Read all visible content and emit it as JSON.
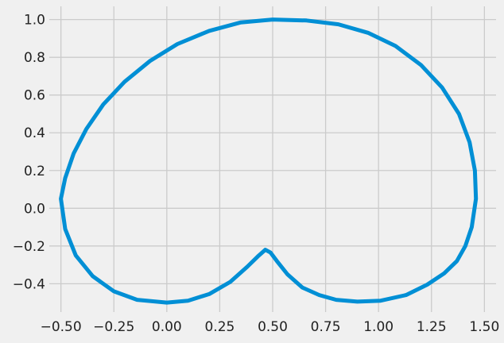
{
  "chart_data": {
    "type": "line",
    "title": "",
    "xlabel": "",
    "ylabel": "",
    "xlim": [
      -0.555,
      1.555
    ],
    "ylim": [
      -0.55,
      1.07
    ],
    "grid": true,
    "background_color": "#f0f0f0",
    "grid_color": "#cbcbcb",
    "x_ticks": [
      "−0.50",
      "−0.25",
      "0.00",
      "0.25",
      "0.50",
      "0.75",
      "1.00",
      "1.25",
      "1.50"
    ],
    "x_tick_values": [
      -0.5,
      -0.25,
      0.0,
      0.25,
      0.5,
      0.75,
      1.0,
      1.25,
      1.5
    ],
    "y_ticks": [
      "−0.4",
      "−0.2",
      "0.0",
      "0.2",
      "0.4",
      "0.6",
      "0.8",
      "1.0"
    ],
    "y_tick_values": [
      -0.4,
      -0.2,
      0.0,
      0.2,
      0.4,
      0.6,
      0.8,
      1.0
    ],
    "series": [
      {
        "color": "#008fd5",
        "x": [
          -0.5,
          -0.48,
          -0.43,
          -0.35,
          -0.25,
          -0.14,
          0.0,
          0.1,
          0.2,
          0.3,
          0.38,
          0.43,
          0.465,
          0.49,
          0.52,
          0.57,
          0.64,
          0.72,
          0.8,
          0.9,
          1.01,
          1.13,
          1.23,
          1.31,
          1.37,
          1.41,
          1.44,
          1.46,
          1.455,
          1.43,
          1.38,
          1.3,
          1.2,
          1.08,
          0.95,
          0.81,
          0.66,
          0.5,
          0.35,
          0.2,
          0.05,
          -0.08,
          -0.2,
          -0.3,
          -0.38,
          -0.44,
          -0.48,
          -0.5
        ],
        "y": [
          0.05,
          -0.11,
          -0.25,
          -0.36,
          -0.44,
          -0.485,
          -0.5,
          -0.49,
          -0.455,
          -0.39,
          -0.31,
          -0.255,
          -0.22,
          -0.235,
          -0.28,
          -0.35,
          -0.42,
          -0.46,
          -0.485,
          -0.495,
          -0.49,
          -0.46,
          -0.405,
          -0.345,
          -0.28,
          -0.2,
          -0.1,
          0.05,
          0.2,
          0.35,
          0.5,
          0.64,
          0.76,
          0.86,
          0.93,
          0.975,
          0.995,
          1.0,
          0.985,
          0.94,
          0.87,
          0.78,
          0.67,
          0.55,
          0.42,
          0.29,
          0.16,
          0.05
        ]
      }
    ]
  }
}
